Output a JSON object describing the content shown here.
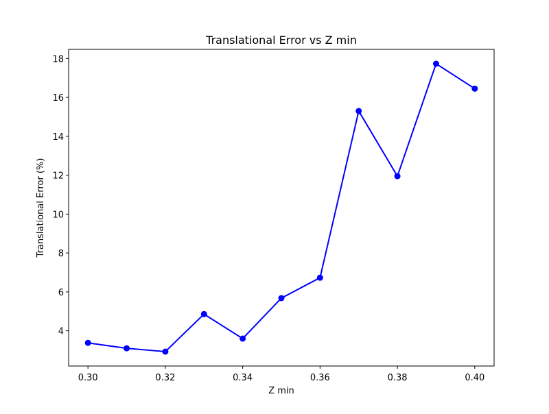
{
  "chart_data": {
    "type": "line",
    "title": "Translational Error vs Z min",
    "xlabel": "Z min",
    "ylabel": "Translational Error (%)",
    "x": [
      0.3,
      0.31,
      0.32,
      0.33,
      0.34,
      0.35,
      0.36,
      0.37,
      0.38,
      0.39,
      0.4
    ],
    "series": [
      {
        "values": [
          3.38,
          3.1,
          2.93,
          4.86,
          3.6,
          5.68,
          6.73,
          15.3,
          11.95,
          17.73,
          16.45
        ],
        "color": "#0000ff",
        "marker": "circle"
      }
    ],
    "xlim": [
      0.295,
      0.405
    ],
    "ylim": [
      2.19,
      18.47
    ],
    "xticks": [
      0.3,
      0.32,
      0.34,
      0.36,
      0.38,
      0.4
    ],
    "xtick_labels": [
      "0.30",
      "0.32",
      "0.34",
      "0.36",
      "0.38",
      "0.40"
    ],
    "yticks": [
      4,
      6,
      8,
      10,
      12,
      14,
      16,
      18
    ],
    "ytick_labels": [
      "4",
      "6",
      "8",
      "10",
      "12",
      "14",
      "16",
      "18"
    ],
    "grid": false,
    "legend": "none"
  }
}
